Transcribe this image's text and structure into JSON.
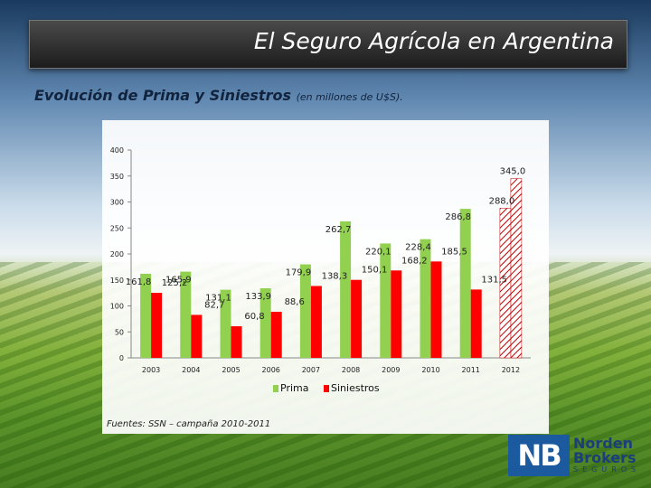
{
  "header": {
    "title": "El Seguro Agrícola en Argentina"
  },
  "subtitle": {
    "main": "Evolución de Prima y Siniestros",
    "note": "(en millones de U$S)."
  },
  "source": "Fuentes: SSN – campaña 2010-2011",
  "logo": {
    "line1": "Norden",
    "line2": "Brokers",
    "line3": "SEGUROS"
  },
  "colors": {
    "prima": "#92d050",
    "siniestros": "#ff0000",
    "estimate_hatch": "#c00000"
  },
  "chart_data": {
    "type": "bar",
    "categories": [
      "2003",
      "2004",
      "2005",
      "2006",
      "2007",
      "2008",
      "2009",
      "2010",
      "2011",
      "2012"
    ],
    "ylim": [
      0,
      400
    ],
    "yticks": [
      0,
      50,
      100,
      150,
      200,
      250,
      300,
      350,
      400
    ],
    "legend_position": "bottom",
    "series": [
      {
        "name": "Prima",
        "values": [
          161.8,
          165.9,
          131.1,
          133.9,
          179.9,
          262.7,
          220.1,
          228.4,
          286.8,
          null
        ],
        "labels": [
          "161,8",
          "165,9",
          "131,1",
          "133,9",
          "179,9",
          "262,7",
          "220,1",
          "228,4",
          "286,8",
          ""
        ]
      },
      {
        "name": "Siniestros",
        "values": [
          125.2,
          82.7,
          60.8,
          88.6,
          138.3,
          150.1,
          168.2,
          185.5,
          131.5,
          null
        ],
        "labels": [
          "125,2",
          "82,7",
          "60,8",
          "88,6",
          "138,3",
          "150,1",
          "168,2",
          "185,5",
          "131,5",
          ""
        ]
      }
    ],
    "estimate_bars": [
      {
        "category": "2012",
        "values": [
          345.0,
          288.0
        ],
        "labels": [
          "345,0",
          "288,0"
        ]
      }
    ]
  }
}
